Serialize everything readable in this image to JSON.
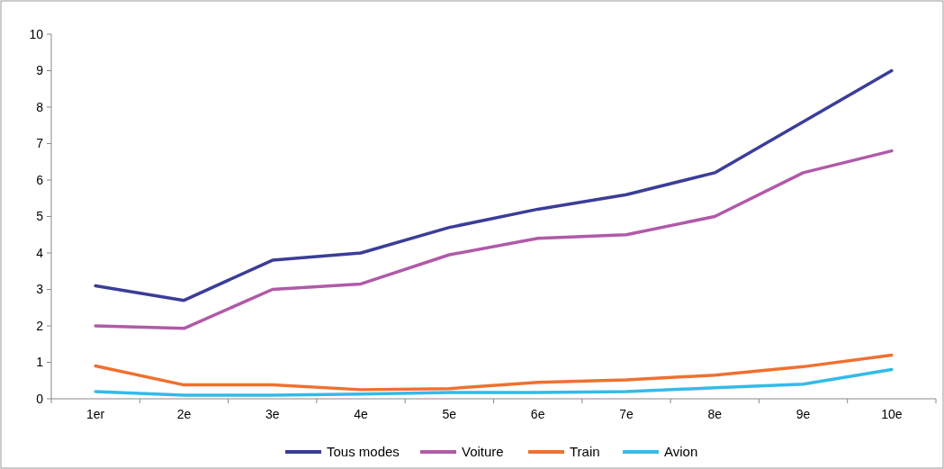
{
  "chart_data": {
    "type": "line",
    "categories": [
      "1er",
      "2e",
      "3e",
      "4e",
      "5e",
      "6e",
      "7e",
      "8e",
      "9e",
      "10e"
    ],
    "ylim": [
      0,
      10
    ],
    "yticks": [
      0,
      1,
      2,
      3,
      4,
      5,
      6,
      7,
      8,
      9,
      10
    ],
    "grid": false,
    "legend": "bottom",
    "marker": "none",
    "line_style": "solid",
    "series": [
      {
        "name": "Tous modes",
        "color": "#3b3d98",
        "values": [
          3.1,
          2.7,
          3.8,
          4.0,
          4.7,
          5.2,
          5.6,
          6.2,
          7.6,
          9.0
        ]
      },
      {
        "name": "Voiture",
        "color": "#b05aa8",
        "values": [
          2.0,
          1.93,
          3.0,
          3.15,
          3.95,
          4.4,
          4.5,
          5.0,
          6.2,
          6.8
        ]
      },
      {
        "name": "Train",
        "color": "#f07030",
        "values": [
          0.9,
          0.38,
          0.38,
          0.25,
          0.28,
          0.45,
          0.52,
          0.65,
          0.88,
          1.2
        ]
      },
      {
        "name": "Avion",
        "color": "#33bbe8",
        "values": [
          0.2,
          0.1,
          0.1,
          0.13,
          0.17,
          0.17,
          0.2,
          0.3,
          0.4,
          0.8
        ]
      }
    ]
  }
}
